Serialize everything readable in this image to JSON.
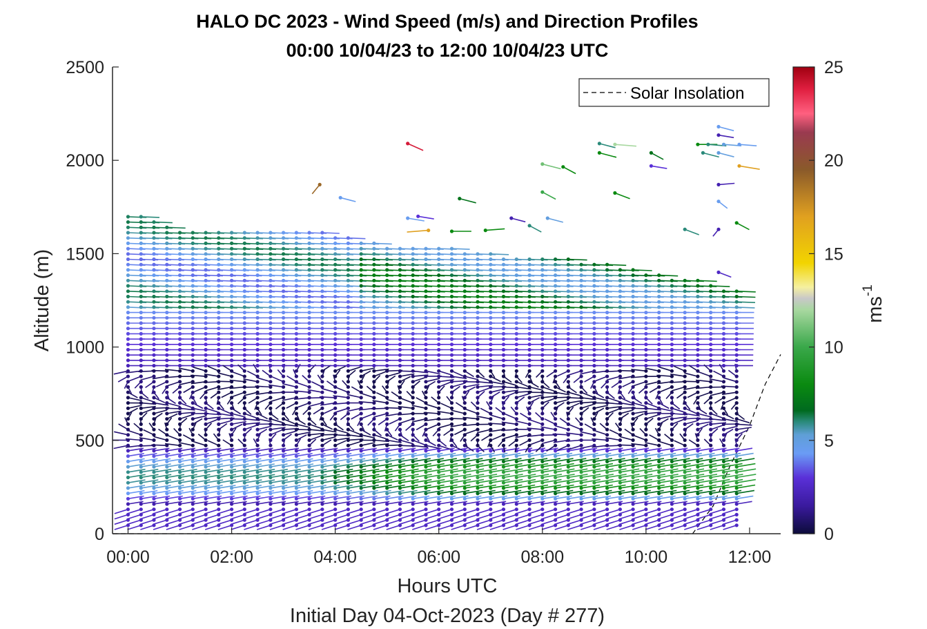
{
  "chart_data": {
    "type": "scatter",
    "subtype": "wind-barb profile",
    "title": "HALO DC 2023 - Wind Speed (m/s) and Direction Profiles",
    "subtitle": "00:00 10/04/23 to 12:00 10/04/23  UTC",
    "xlabel": "Hours UTC",
    "xlabel2": "Initial Day 04-Oct-2023 (Day # 277)",
    "ylabel": "Altitude (m)",
    "xlim": [
      -0.3,
      12.6
    ],
    "ylim": [
      0,
      2500
    ],
    "xticks": [
      0,
      2,
      4,
      6,
      8,
      10,
      12
    ],
    "xtick_labels": [
      "00:00",
      "02:00",
      "04:00",
      "06:00",
      "08:00",
      "10:00",
      "12:00"
    ],
    "yticks": [
      0,
      500,
      1000,
      1500,
      2000,
      2500
    ],
    "ytick_labels": [
      "0",
      "500",
      "1000",
      "1500",
      "2000",
      "2500"
    ],
    "legend": {
      "entries": [
        "Solar Insolation"
      ],
      "position": "top-right",
      "style": "dashed black"
    },
    "colorbar": {
      "label": "ms",
      "label_exponent": "-1",
      "range": [
        0,
        25
      ],
      "ticks": [
        0,
        5,
        10,
        15,
        20,
        25
      ],
      "tick_labels": [
        "0",
        "5",
        "10",
        "15",
        "20",
        "25"
      ],
      "colors": [
        {
          "v": 0,
          "c": "#0c0c3a"
        },
        {
          "v": 1.5,
          "c": "#3a1a9e"
        },
        {
          "v": 3,
          "c": "#5a30d8"
        },
        {
          "v": 4.3,
          "c": "#6a9cf5"
        },
        {
          "v": 5.3,
          "c": "#5f9fd6"
        },
        {
          "v": 6,
          "c": "#2a8a7a"
        },
        {
          "v": 6.6,
          "c": "#006a1f"
        },
        {
          "v": 8,
          "c": "#0a8a10"
        },
        {
          "v": 10,
          "c": "#3aa84a"
        },
        {
          "v": 12,
          "c": "#a8d8a0"
        },
        {
          "v": 12.6,
          "c": "#c8c8c8"
        },
        {
          "v": 13.2,
          "c": "#f5f0a0"
        },
        {
          "v": 14.5,
          "c": "#f2d400"
        },
        {
          "v": 17,
          "c": "#e0a020"
        },
        {
          "v": 19.5,
          "c": "#8a5a2a"
        },
        {
          "v": 21.5,
          "c": "#9a3a50"
        },
        {
          "v": 22.5,
          "c": "#ff6080"
        },
        {
          "v": 23.8,
          "c": "#e01f40"
        },
        {
          "v": 25,
          "c": "#a00010"
        }
      ]
    },
    "profile_times_hours": [
      0,
      0.25,
      0.5,
      0.75,
      1,
      1.25,
      1.5,
      1.75,
      2,
      2.25,
      2.5,
      2.75,
      3,
      3.25,
      3.5,
      3.75,
      4,
      4.25,
      4.5,
      4.75,
      5,
      5.25,
      5.5,
      5.75,
      6,
      6.25,
      6.5,
      6.75,
      7,
      7.25,
      7.5,
      7.75,
      8,
      8.25,
      8.5,
      8.75,
      9,
      9.25,
      9.5,
      9.75,
      10,
      10.25,
      10.5,
      10.75,
      11,
      11.25,
      11.5,
      11.75
    ],
    "altitude_step_m": 28.5,
    "altitude_min_m": 45,
    "layer_top_m": {
      "hours": [
        0,
        1,
        2,
        3,
        4,
        5,
        6,
        7,
        8,
        9,
        10,
        11,
        11.75
      ],
      "top": [
        1720,
        1640,
        1620,
        1630,
        1610,
        1540,
        1540,
        1500,
        1490,
        1460,
        1400,
        1360,
        1300
      ]
    },
    "speed_structure_mps": {
      "description": "dominant wind speeds by altitude band and time (estimated from barb colors)",
      "bands": [
        {
          "alt_range": [
            0,
            150
          ],
          "hours": [
            0,
            12
          ],
          "speed": 2.5
        },
        {
          "alt_range": [
            150,
            450
          ],
          "hours": [
            0,
            4
          ],
          "speed": 4.8
        },
        {
          "alt_range": [
            150,
            450
          ],
          "hours": [
            5,
            10
          ],
          "speed": 8
        },
        {
          "alt_range": [
            450,
            900
          ],
          "hours": [
            0,
            12
          ],
          "speed": 1
        },
        {
          "alt_range": [
            900,
            1200
          ],
          "hours": [
            0,
            12
          ],
          "speed": 3
        },
        {
          "alt_range": [
            1200,
            1500
          ],
          "hours": [
            0,
            4
          ],
          "speed": 5
        },
        {
          "alt_range": [
            1200,
            1500
          ],
          "hours": [
            5,
            10
          ],
          "speed": 7
        }
      ]
    },
    "sparse_upper_points": [
      {
        "t": 5.4,
        "alt": 2090,
        "speed": 24,
        "dir": 315
      },
      {
        "t": 3.7,
        "alt": 1870,
        "speed": 19,
        "dir": 20
      },
      {
        "t": 5.8,
        "alt": 1625,
        "speed": 17,
        "dir": 80
      },
      {
        "t": 11.8,
        "alt": 1970,
        "speed": 17,
        "dir": 290
      },
      {
        "t": 8.0,
        "alt": 1980,
        "speed": 11,
        "dir": 300
      },
      {
        "t": 8.4,
        "alt": 1965,
        "speed": 8,
        "dir": 320
      },
      {
        "t": 9.1,
        "alt": 2090,
        "speed": 6,
        "dir": 300
      },
      {
        "t": 9.4,
        "alt": 2085,
        "speed": 12,
        "dir": 280
      },
      {
        "t": 9.1,
        "alt": 2040,
        "speed": 8,
        "dir": 300
      },
      {
        "t": 10.1,
        "alt": 2040,
        "speed": 7,
        "dir": 320
      },
      {
        "t": 10.1,
        "alt": 1970,
        "speed": 3,
        "dir": 290
      },
      {
        "t": 9.4,
        "alt": 1825,
        "speed": 8,
        "dir": 310
      },
      {
        "t": 8.0,
        "alt": 1830,
        "speed": 10,
        "dir": 320
      },
      {
        "t": 6.4,
        "alt": 1795,
        "speed": 7,
        "dir": 300
      },
      {
        "t": 4.1,
        "alt": 1800,
        "speed": 4.5,
        "dir": 300
      },
      {
        "t": 11.0,
        "alt": 2085,
        "speed": 8,
        "dir": 270
      },
      {
        "t": 11.2,
        "alt": 2085,
        "speed": 6,
        "dir": 280
      },
      {
        "t": 11.5,
        "alt": 2085,
        "speed": 5,
        "dir": 280
      },
      {
        "t": 11.8,
        "alt": 2085,
        "speed": 4.5,
        "dir": 280
      },
      {
        "t": 11.4,
        "alt": 2180,
        "speed": 4.5,
        "dir": 300
      },
      {
        "t": 11.4,
        "alt": 2135,
        "speed": 2,
        "dir": 290
      },
      {
        "t": 11.1,
        "alt": 2040,
        "speed": 6,
        "dir": 300
      },
      {
        "t": 11.4,
        "alt": 2040,
        "speed": 5,
        "dir": 300
      },
      {
        "t": 11.4,
        "alt": 1870,
        "speed": 2,
        "dir": 260
      },
      {
        "t": 11.4,
        "alt": 1780,
        "speed": 4.5,
        "dir": 330
      },
      {
        "t": 10.75,
        "alt": 1630,
        "speed": 6,
        "dir": 310
      },
      {
        "t": 11.4,
        "alt": 1630,
        "speed": 2,
        "dir": 20
      },
      {
        "t": 11.75,
        "alt": 1665,
        "speed": 8,
        "dir": 320
      },
      {
        "t": 11.4,
        "alt": 1400,
        "speed": 2.5,
        "dir": 310
      },
      {
        "t": 7.4,
        "alt": 1690,
        "speed": 2,
        "dir": 300
      },
      {
        "t": 7.75,
        "alt": 1650,
        "speed": 6,
        "dir": 320
      },
      {
        "t": 8.1,
        "alt": 1690,
        "speed": 5,
        "dir": 300
      },
      {
        "t": 6.9,
        "alt": 1625,
        "speed": 8,
        "dir": 260
      },
      {
        "t": 6.25,
        "alt": 1620,
        "speed": 8,
        "dir": 270
      },
      {
        "t": 5.4,
        "alt": 1690,
        "speed": 4.5,
        "dir": 290
      },
      {
        "t": 5.6,
        "alt": 1700,
        "speed": 3,
        "dir": 290
      }
    ],
    "solar_insolation": {
      "hours": [
        -0.3,
        10.9,
        11.3,
        11.6,
        12.0,
        12.3,
        12.6
      ],
      "values": [
        0,
        0,
        150,
        350,
        580,
        800,
        960
      ]
    }
  }
}
